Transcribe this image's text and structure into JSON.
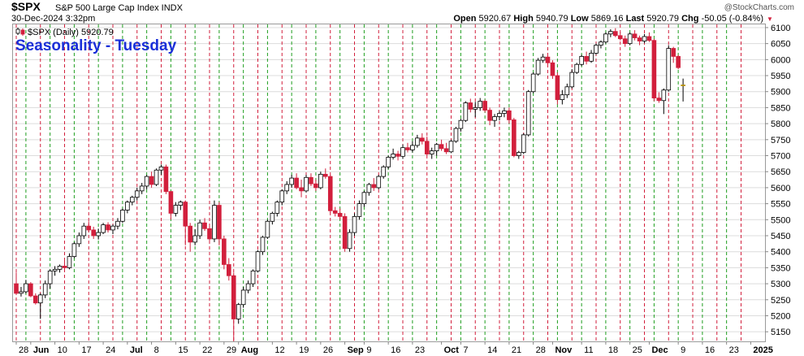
{
  "header": {
    "symbol": "$SPX",
    "description": "S&P 500 Large Cap Index INDX",
    "watermark": "@StockCharts.com",
    "datetime": "30-Dec-2024 3:32pm",
    "open_label": "Open",
    "open_value": "5920.67",
    "high_label": "High",
    "high_value": "5940.79",
    "low_label": "Low",
    "low_value": "5869.16",
    "last_label": "Last",
    "last_value": "5920.79",
    "chg_label": "Chg",
    "chg_value": "-50.05 (-0.84%)",
    "legend": "$SPX (Daily) 5920.79",
    "legend_icon": "candlestick-icon",
    "overlay_title": "Seasonality - Tuesday"
  },
  "colors": {
    "up": "#ffffff",
    "down": "#d21f3c",
    "outline": "#000000",
    "last": "#f5c518",
    "green_line": "#1e9e1e",
    "red_line": "#d21f3c",
    "grid": "#dcdcdc",
    "title": "#1a2fd8"
  },
  "chart_data": {
    "type": "candlestick",
    "ylim": [
      5120,
      6110
    ],
    "y_ticks": [
      5150,
      5200,
      5250,
      5300,
      5350,
      5400,
      5450,
      5500,
      5550,
      5600,
      5650,
      5700,
      5750,
      5800,
      5850,
      5900,
      5950,
      6000,
      6050,
      6100
    ],
    "x_ticks": [
      {
        "label": "28",
        "i": 0
      },
      {
        "label": "Jun",
        "i": 3
      },
      {
        "label": "10",
        "i": 8
      },
      {
        "label": "17",
        "i": 13
      },
      {
        "label": "24",
        "i": 18
      },
      {
        "label": "Jul",
        "i": 23
      },
      {
        "label": "8",
        "i": 28
      },
      {
        "label": "15",
        "i": 33
      },
      {
        "label": "22",
        "i": 38
      },
      {
        "label": "29",
        "i": 43
      },
      {
        "label": "Aug",
        "i": 46
      },
      {
        "label": "12",
        "i": 53
      },
      {
        "label": "19",
        "i": 58
      },
      {
        "label": "26",
        "i": 63
      },
      {
        "label": "Sep",
        "i": 68
      },
      {
        "label": "9",
        "i": 72
      },
      {
        "label": "16",
        "i": 77
      },
      {
        "label": "23",
        "i": 82
      },
      {
        "label": "Oct",
        "i": 88
      },
      {
        "label": "7",
        "i": 92
      },
      {
        "label": "14",
        "i": 97
      },
      {
        "label": "21",
        "i": 102
      },
      {
        "label": "28",
        "i": 107
      },
      {
        "label": "Nov",
        "i": 111
      },
      {
        "label": "11",
        "i": 117
      },
      {
        "label": "18",
        "i": 122
      },
      {
        "label": "25",
        "i": 127
      },
      {
        "label": "Dec",
        "i": 131
      },
      {
        "label": "9",
        "i": 137
      },
      {
        "label": "16",
        "i": 142
      },
      {
        "label": "23",
        "i": 147
      },
      {
        "label": "2025",
        "i": 152
      }
    ],
    "green_lines": [
      2,
      7,
      12,
      17,
      22,
      27,
      32,
      37,
      42,
      47,
      52,
      57,
      62,
      67,
      72,
      77,
      82,
      87,
      92,
      97,
      102,
      107,
      112,
      117,
      122,
      127,
      132,
      137,
      142,
      147
    ],
    "red_lines": [
      0,
      5,
      10,
      15,
      20,
      25,
      30,
      35,
      40,
      45,
      50,
      55,
      60,
      65,
      70,
      75,
      80,
      85,
      90,
      95,
      100,
      105,
      110,
      115,
      120,
      125,
      130,
      135,
      140,
      145,
      150
    ],
    "candles": [
      [
        5300,
        5335,
        5265,
        5270
      ],
      [
        5270,
        5290,
        5260,
        5275
      ],
      [
        5275,
        5312,
        5270,
        5300
      ],
      [
        5300,
        5305,
        5258,
        5262
      ],
      [
        5262,
        5270,
        5235,
        5240
      ],
      [
        5240,
        5270,
        5190,
        5265
      ],
      [
        5265,
        5310,
        5255,
        5300
      ],
      [
        5300,
        5345,
        5285,
        5340
      ],
      [
        5340,
        5355,
        5325,
        5345
      ],
      [
        5345,
        5360,
        5335,
        5355
      ],
      [
        5355,
        5375,
        5340,
        5350
      ],
      [
        5350,
        5395,
        5345,
        5385
      ],
      [
        5385,
        5430,
        5380,
        5425
      ],
      [
        5425,
        5460,
        5415,
        5450
      ],
      [
        5450,
        5490,
        5440,
        5480
      ],
      [
        5480,
        5495,
        5460,
        5468
      ],
      [
        5468,
        5478,
        5440,
        5450
      ],
      [
        5450,
        5472,
        5438,
        5460
      ],
      [
        5460,
        5490,
        5455,
        5484
      ],
      [
        5484,
        5492,
        5460,
        5468
      ],
      [
        5468,
        5485,
        5455,
        5480
      ],
      [
        5480,
        5505,
        5470,
        5495
      ],
      [
        5495,
        5535,
        5490,
        5530
      ],
      [
        5530,
        5560,
        5520,
        5555
      ],
      [
        5555,
        5575,
        5545,
        5570
      ],
      [
        5570,
        5600,
        5560,
        5590
      ],
      [
        5590,
        5615,
        5580,
        5605
      ],
      [
        5605,
        5640,
        5595,
        5635
      ],
      [
        5635,
        5650,
        5600,
        5610
      ],
      [
        5610,
        5660,
        5605,
        5655
      ],
      [
        5655,
        5672,
        5640,
        5665
      ],
      [
        5665,
        5672,
        5580,
        5588
      ],
      [
        5588,
        5590,
        5500,
        5520
      ],
      [
        5520,
        5555,
        5510,
        5545
      ],
      [
        5545,
        5560,
        5530,
        5555
      ],
      [
        5555,
        5560,
        5420,
        5480
      ],
      [
        5480,
        5490,
        5400,
        5430
      ],
      [
        5430,
        5470,
        5420,
        5450
      ],
      [
        5450,
        5500,
        5440,
        5490
      ],
      [
        5490,
        5505,
        5465,
        5472
      ],
      [
        5472,
        5480,
        5430,
        5440
      ],
      [
        5440,
        5560,
        5430,
        5545
      ],
      [
        5545,
        5555,
        5420,
        5440
      ],
      [
        5440,
        5450,
        5345,
        5360
      ],
      [
        5360,
        5380,
        5310,
        5325
      ],
      [
        5325,
        5335,
        5120,
        5190
      ],
      [
        5190,
        5240,
        5175,
        5235
      ],
      [
        5235,
        5290,
        5225,
        5280
      ],
      [
        5280,
        5310,
        5270,
        5300
      ],
      [
        5300,
        5345,
        5290,
        5340
      ],
      [
        5340,
        5405,
        5335,
        5400
      ],
      [
        5400,
        5450,
        5390,
        5445
      ],
      [
        5445,
        5500,
        5440,
        5495
      ],
      [
        5495,
        5525,
        5485,
        5520
      ],
      [
        5520,
        5560,
        5510,
        5555
      ],
      [
        5555,
        5595,
        5545,
        5590
      ],
      [
        5590,
        5620,
        5580,
        5610
      ],
      [
        5610,
        5640,
        5600,
        5630
      ],
      [
        5630,
        5645,
        5595,
        5600
      ],
      [
        5600,
        5625,
        5570,
        5590
      ],
      [
        5590,
        5640,
        5585,
        5632
      ],
      [
        5632,
        5645,
        5605,
        5612
      ],
      [
        5612,
        5625,
        5590,
        5600
      ],
      [
        5600,
        5650,
        5595,
        5642
      ],
      [
        5642,
        5660,
        5628,
        5635
      ],
      [
        5635,
        5640,
        5520,
        5528
      ],
      [
        5528,
        5540,
        5510,
        5520
      ],
      [
        5520,
        5535,
        5500,
        5510
      ],
      [
        5510,
        5520,
        5400,
        5410
      ],
      [
        5410,
        5470,
        5400,
        5460
      ],
      [
        5460,
        5520,
        5450,
        5510
      ],
      [
        5510,
        5560,
        5500,
        5550
      ],
      [
        5550,
        5590,
        5540,
        5585
      ],
      [
        5585,
        5615,
        5575,
        5610
      ],
      [
        5610,
        5630,
        5590,
        5600
      ],
      [
        5600,
        5640,
        5595,
        5635
      ],
      [
        5635,
        5670,
        5628,
        5665
      ],
      [
        5665,
        5700,
        5658,
        5695
      ],
      [
        5695,
        5722,
        5688,
        5705
      ],
      [
        5705,
        5715,
        5685,
        5698
      ],
      [
        5698,
        5735,
        5690,
        5725
      ],
      [
        5725,
        5740,
        5710,
        5718
      ],
      [
        5718,
        5745,
        5710,
        5732
      ],
      [
        5732,
        5765,
        5725,
        5755
      ],
      [
        5755,
        5770,
        5735,
        5745
      ],
      [
        5745,
        5760,
        5700,
        5705
      ],
      [
        5705,
        5725,
        5690,
        5715
      ],
      [
        5715,
        5740,
        5700,
        5735
      ],
      [
        5735,
        5750,
        5715,
        5722
      ],
      [
        5722,
        5740,
        5705,
        5712
      ],
      [
        5712,
        5750,
        5708,
        5745
      ],
      [
        5745,
        5790,
        5740,
        5785
      ],
      [
        5785,
        5815,
        5775,
        5810
      ],
      [
        5810,
        5870,
        5805,
        5865
      ],
      [
        5865,
        5878,
        5835,
        5845
      ],
      [
        5845,
        5868,
        5820,
        5850
      ],
      [
        5850,
        5880,
        5840,
        5870
      ],
      [
        5870,
        5875,
        5835,
        5842
      ],
      [
        5842,
        5850,
        5795,
        5810
      ],
      [
        5810,
        5830,
        5790,
        5822
      ],
      [
        5822,
        5840,
        5810,
        5832
      ],
      [
        5832,
        5850,
        5820,
        5840
      ],
      [
        5840,
        5850,
        5800,
        5812
      ],
      [
        5812,
        5818,
        5695,
        5700
      ],
      [
        5700,
        5715,
        5690,
        5710
      ],
      [
        5710,
        5770,
        5705,
        5765
      ],
      [
        5765,
        5905,
        5760,
        5900
      ],
      [
        5900,
        5960,
        5895,
        5955
      ],
      [
        5955,
        6005,
        5950,
        5998
      ],
      [
        5998,
        6018,
        5990,
        6008
      ],
      [
        6008,
        6012,
        5985,
        5990
      ],
      [
        5990,
        5998,
        5940,
        5950
      ],
      [
        5950,
        5960,
        5860,
        5875
      ],
      [
        5875,
        5905,
        5860,
        5890
      ],
      [
        5890,
        5925,
        5880,
        5915
      ],
      [
        5915,
        5970,
        5910,
        5960
      ],
      [
        5960,
        5990,
        5955,
        5985
      ],
      [
        5985,
        6015,
        5980,
        6010
      ],
      [
        6010,
        6025,
        5985,
        5995
      ],
      [
        5995,
        6030,
        5990,
        6020
      ],
      [
        6020,
        6050,
        6015,
        6045
      ],
      [
        6045,
        6060,
        6035,
        6055
      ],
      [
        6055,
        6085,
        6050,
        6080
      ],
      [
        6080,
        6095,
        6070,
        6088
      ],
      [
        6088,
        6098,
        6070,
        6075
      ],
      [
        6075,
        6085,
        6060,
        6065
      ],
      [
        6065,
        6075,
        6040,
        6050
      ],
      [
        6050,
        6085,
        6045,
        6080
      ],
      [
        6080,
        6092,
        6060,
        6068
      ],
      [
        6068,
        6075,
        6045,
        6058
      ],
      [
        6058,
        6080,
        6052,
        6072
      ],
      [
        6072,
        6085,
        6055,
        6060
      ],
      [
        6060,
        6065,
        5870,
        5880
      ],
      [
        5880,
        5898,
        5865,
        5872
      ],
      [
        5872,
        5910,
        5830,
        5905
      ],
      [
        5905,
        6045,
        5900,
        6035
      ],
      [
        6035,
        6040,
        5990,
        6010
      ],
      [
        6010,
        6015,
        5970,
        5975
      ],
      [
        5920.67,
        5940.79,
        5869.16,
        5920.79
      ]
    ]
  }
}
